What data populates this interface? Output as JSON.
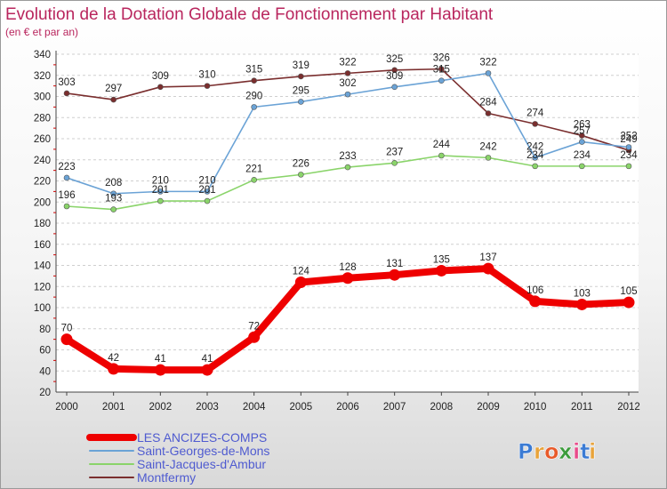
{
  "chart_data": {
    "type": "line",
    "title": "Evolution de la Dotation Globale de Fonctionnement par Habitant",
    "subtitle": "(en € et par an)",
    "x": [
      "2000",
      "2001",
      "2002",
      "2003",
      "2004",
      "2005",
      "2006",
      "2007",
      "2008",
      "2009",
      "2010",
      "2011",
      "2012"
    ],
    "ylim": [
      20,
      340
    ],
    "yticks": [
      20,
      40,
      60,
      80,
      100,
      120,
      140,
      160,
      180,
      200,
      220,
      240,
      260,
      280,
      300,
      320,
      340
    ],
    "grid": "horizontal dashed",
    "legend_position": "bottom-left",
    "series": [
      {
        "name": "LES ANCIZES-COMPS",
        "color": "#ee0000",
        "values": [
          70,
          42,
          41,
          41,
          72,
          124,
          128,
          131,
          135,
          137,
          106,
          103,
          105
        ]
      },
      {
        "name": "Saint-Georges-de-Mons",
        "color": "#6ba3d6",
        "values": [
          223,
          208,
          210,
          210,
          290,
          295,
          302,
          309,
          315,
          322,
          242,
          257,
          252
        ]
      },
      {
        "name": "Saint-Jacques-d'Ambur",
        "color": "#8ad46a",
        "values": [
          196,
          193,
          201,
          201,
          221,
          226,
          233,
          237,
          244,
          242,
          234,
          234,
          234
        ]
      },
      {
        "name": "Montfermy",
        "color": "#7a2e2e",
        "values": [
          303,
          297,
          309,
          310,
          315,
          319,
          322,
          325,
          326,
          284,
          274,
          263,
          249
        ]
      }
    ]
  },
  "logo": {
    "letters": [
      "P",
      "r",
      "o",
      "x",
      "i",
      "t",
      "i"
    ],
    "colors": [
      "#3b7bd4",
      "#e8a33a",
      "#e85a2a",
      "#3b9b3b",
      "#e84a8a",
      "#3b7bd4",
      "#e8a33a"
    ]
  }
}
